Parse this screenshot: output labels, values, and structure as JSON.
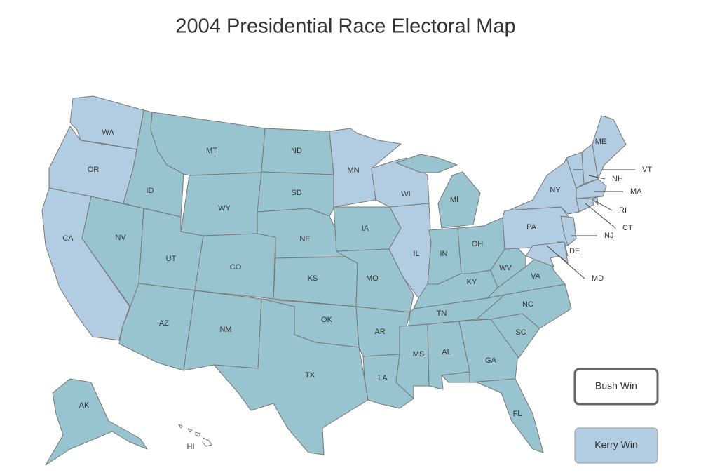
{
  "title": "2004 Presidential Race Electoral Map",
  "states": [
    {
      "abbr": "WA",
      "color": "#b2cce2"
    },
    {
      "abbr": "OR",
      "color": "#b2cce2"
    },
    {
      "abbr": "CA",
      "color": "#b2cce2"
    },
    {
      "abbr": "NV",
      "color": "#97c4ce"
    },
    {
      "abbr": "ID",
      "color": "#97c4ce"
    },
    {
      "abbr": "MT",
      "color": "#97c4ce"
    },
    {
      "abbr": "WY",
      "color": "#97c4ce"
    },
    {
      "abbr": "UT",
      "color": "#97c4ce"
    },
    {
      "abbr": "CO",
      "color": "#97c4ce"
    },
    {
      "abbr": "AZ",
      "color": "#97c4ce"
    },
    {
      "abbr": "NM",
      "color": "#97c4ce"
    },
    {
      "abbr": "ND",
      "color": "#97c4ce"
    },
    {
      "abbr": "SD",
      "color": "#97c4ce"
    },
    {
      "abbr": "NE",
      "color": "#97c4ce"
    },
    {
      "abbr": "KS",
      "color": "#97c4ce"
    },
    {
      "abbr": "OK",
      "color": "#97c4ce"
    },
    {
      "abbr": "TX",
      "color": "#97c4ce"
    },
    {
      "abbr": "MN",
      "color": "#b2cce2"
    },
    {
      "abbr": "IA",
      "color": "#97c4ce"
    },
    {
      "abbr": "MO",
      "color": "#97c4ce"
    },
    {
      "abbr": "AR",
      "color": "#97c4ce"
    },
    {
      "abbr": "LA",
      "color": "#97c4ce"
    },
    {
      "abbr": "WI",
      "color": "#b2cce2"
    },
    {
      "abbr": "IL",
      "color": "#b2cce2"
    },
    {
      "abbr": "MI",
      "color": "#97c4ce"
    },
    {
      "abbr": "IN",
      "color": "#97c4ce"
    },
    {
      "abbr": "OH",
      "color": "#97c4ce"
    },
    {
      "abbr": "KY",
      "color": "#97c4ce"
    },
    {
      "abbr": "TN",
      "color": "#97c4ce"
    },
    {
      "abbr": "MS",
      "color": "#97c4ce"
    },
    {
      "abbr": "AL",
      "color": "#97c4ce"
    },
    {
      "abbr": "GA",
      "color": "#97c4ce"
    },
    {
      "abbr": "FL",
      "color": "#97c4ce"
    },
    {
      "abbr": "SC",
      "color": "#97c4ce"
    },
    {
      "abbr": "NC",
      "color": "#97c4ce"
    },
    {
      "abbr": "VA",
      "color": "#97c4ce"
    },
    {
      "abbr": "WV",
      "color": "#97c4ce"
    },
    {
      "abbr": "PA",
      "color": "#b2cce2"
    },
    {
      "abbr": "NY",
      "color": "#b2cce2"
    },
    {
      "abbr": "VT",
      "color": "#b2cce2"
    },
    {
      "abbr": "NH",
      "color": "#b2cce2"
    },
    {
      "abbr": "ME",
      "color": "#b2cce2"
    },
    {
      "abbr": "MA",
      "color": "#b2cce2"
    },
    {
      "abbr": "RI",
      "color": "#b2cce2"
    },
    {
      "abbr": "CT",
      "color": "#b2cce2"
    },
    {
      "abbr": "NJ",
      "color": "#b2cce2"
    },
    {
      "abbr": "DE",
      "color": "#b2cce2"
    },
    {
      "abbr": "MD",
      "color": "#b2cce2"
    },
    {
      "abbr": "AK",
      "color": "#97c4ce"
    },
    {
      "abbr": "HI",
      "color": "#ffffff"
    }
  ],
  "legend": [
    {
      "label": "Bush Win",
      "color": "#ffffff"
    },
    {
      "label": "Kerry Win",
      "color": "#b2cce2"
    }
  ]
}
